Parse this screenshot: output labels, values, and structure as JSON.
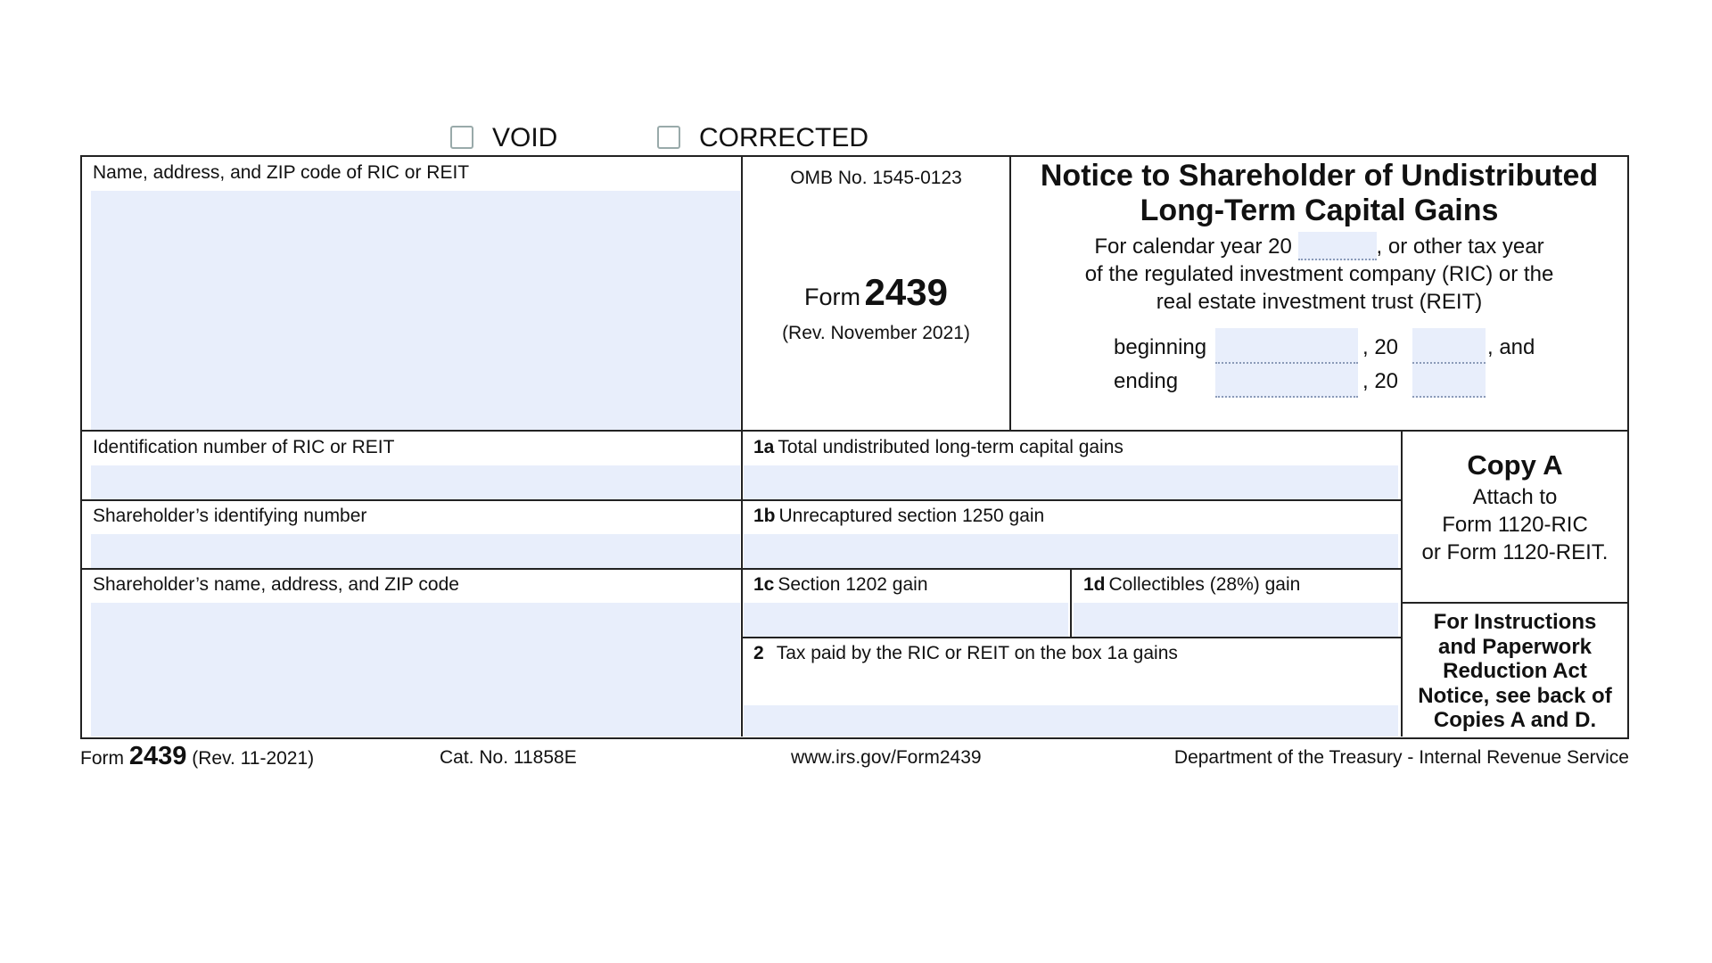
{
  "header": {
    "void_label": "VOID",
    "corrected_label": "CORRECTED"
  },
  "boxes": {
    "payer": "Name, address, and ZIP code of RIC or REIT",
    "payer_id": "Identification number of RIC or REIT",
    "shareholder_id": "Shareholder’s identifying number",
    "shareholder_name": "Shareholder’s name, address, and ZIP code",
    "b1a_num": "1a",
    "b1a": "Total undistributed long-term capital gains",
    "b1b_num": "1b",
    "b1b": "Unrecaptured section 1250 gain",
    "b1c_num": "1c",
    "b1c": "Section 1202 gain",
    "b1d_num": "1d",
    "b1d": "Collectibles (28%) gain",
    "b2_num": "2",
    "b2": "Tax paid by the RIC or REIT on the box 1a gains"
  },
  "omb": {
    "omb": "OMB No. 1545-0123",
    "form_word": "Form",
    "form_number": "2439",
    "rev": "(Rev. November 2021)"
  },
  "title": {
    "line1": "Notice to Shareholder of Undistributed",
    "line2": "Long-Term Capital Gains",
    "cal_pre": "For calendar year 20",
    "cal_post": ", or other tax year",
    "line3": "of the regulated investment company (RIC) or the",
    "line4": "real estate investment trust (REIT)",
    "beginning": "beginning",
    "comma20": ", 20",
    "and": ", and",
    "ending": "ending"
  },
  "copy": {
    "title": "Copy A",
    "l1": "Attach to",
    "l2": "Form 1120-RIC",
    "l3": "or Form 1120-REIT."
  },
  "instructions": {
    "l1": "For Instructions",
    "l2": "and Paperwork",
    "l3": "Reduction Act",
    "l4": "Notice, see back of",
    "l5": "Copies A and D."
  },
  "footer": {
    "form_word": "Form",
    "form_number": "2439",
    "rev": "(Rev. 11-2021)",
    "cat": "Cat. No. 11858E",
    "url": "www.irs.gov/Form2439",
    "dept": "Department of the Treasury - Internal Revenue Service"
  }
}
